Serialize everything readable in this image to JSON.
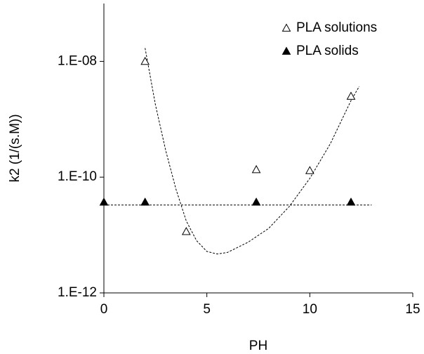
{
  "chart_data": {
    "type": "scatter",
    "xlabel": "PH",
    "ylabel": "k2 (1/(s.M))",
    "xlim": [
      0,
      15
    ],
    "xticks": [
      0,
      5,
      10,
      15
    ],
    "ylim": [
      1e-12,
      1e-07
    ],
    "log_y": true,
    "yticks": [
      {
        "value": 1e-12,
        "label": "1.E-12"
      },
      {
        "value": 1e-10,
        "label": "1.E-10"
      },
      {
        "value": 1e-08,
        "label": "1.E-08"
      }
    ],
    "legend": "upper right",
    "series": [
      {
        "name": "PLA solutions",
        "color": "#000000",
        "marker": "open-triangle",
        "x": [
          2,
          4,
          7.4,
          10,
          12
        ],
        "values": [
          1e-08,
          1.15e-11,
          1.35e-10,
          1.3e-10,
          2.5e-09
        ]
      },
      {
        "name": "PLA solids",
        "color": "#000000",
        "marker": "filled-triangle",
        "x": [
          0,
          2,
          7.4,
          12
        ],
        "values": [
          3.7e-11,
          3.7e-11,
          3.7e-11,
          3.7e-11
        ]
      }
    ],
    "trendlines": [
      {
        "x": [
          2,
          2.5,
          3,
          3.5,
          4,
          4.5,
          5,
          5.5,
          6,
          7,
          8,
          9,
          10,
          11,
          12,
          12.4
        ],
        "values": [
          1.7e-08,
          1.8e-09,
          2.9e-10,
          6.2e-11,
          1.75e-11,
          8e-12,
          5.2e-12,
          4.7e-12,
          5e-12,
          7.5e-12,
          1.3e-11,
          3.1e-11,
          9.5e-11,
          3.8e-10,
          2.1e-09,
          3.7e-09
        ]
      },
      {
        "x": [
          0,
          13
        ],
        "values": [
          3.3e-11,
          3.3e-11
        ]
      }
    ]
  }
}
